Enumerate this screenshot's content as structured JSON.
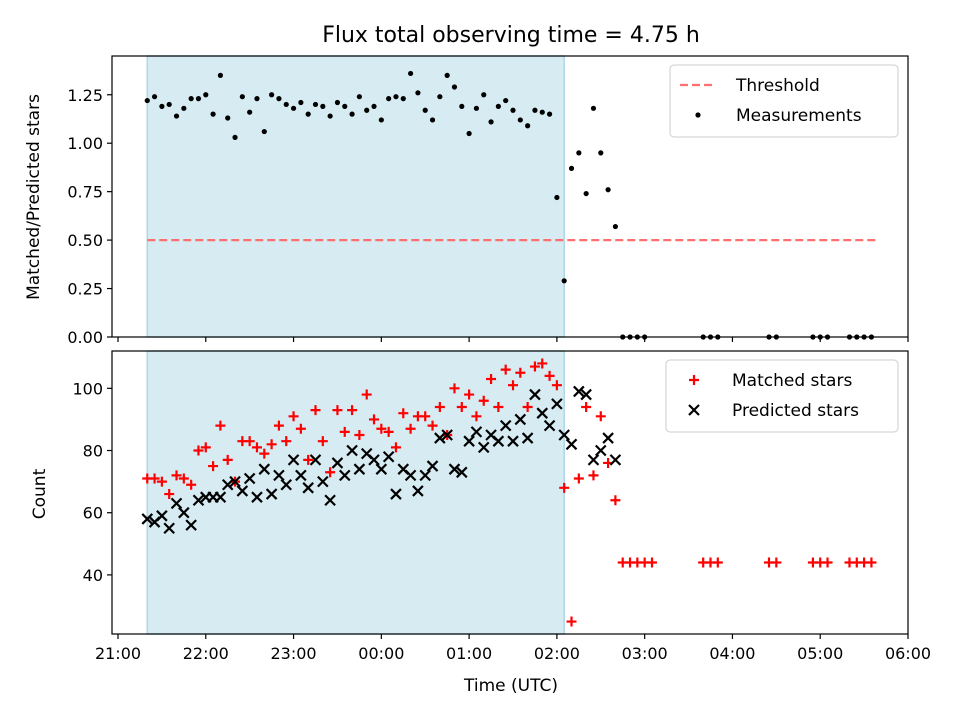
{
  "chart_data": {
    "title": "Flux total observing time = 4.75 h",
    "type": "scatter",
    "xlabel": "Time (UTC)",
    "x_ticks": [
      "21:00",
      "22:00",
      "23:00",
      "00:00",
      "01:00",
      "02:00",
      "03:00",
      "04:00",
      "05:00",
      "06:00"
    ],
    "x_range": [
      "21:00",
      "06:00"
    ],
    "shaded_interval": [
      "21:20",
      "02:05"
    ],
    "colors": {
      "shade": "#add8e6",
      "threshold": "#ff6f6f",
      "matched": "#ff0000",
      "predicted": "#000000",
      "measurement": "#000000"
    },
    "panels": [
      {
        "ylabel": "Matched/Predicted stars",
        "ylim": [
          0,
          1.45
        ],
        "yticks": [
          "0.00",
          "0.25",
          "0.50",
          "0.75",
          "1.00",
          "1.25"
        ],
        "legend_position": "top-right",
        "threshold": {
          "name": "Threshold",
          "value": 0.5,
          "x_range": [
            "21:20",
            "05:40"
          ]
        },
        "series": [
          {
            "name": "Measurements",
            "marker": "dot",
            "points": [
              [
                "21:20",
                1.22
              ],
              [
                "21:25",
                1.24
              ],
              [
                "21:30",
                1.19
              ],
              [
                "21:35",
                1.2
              ],
              [
                "21:40",
                1.14
              ],
              [
                "21:45",
                1.18
              ],
              [
                "21:50",
                1.23
              ],
              [
                "21:55",
                1.23
              ],
              [
                "22:00",
                1.25
              ],
              [
                "22:05",
                1.15
              ],
              [
                "22:10",
                1.35
              ],
              [
                "22:15",
                1.13
              ],
              [
                "22:20",
                1.03
              ],
              [
                "22:25",
                1.24
              ],
              [
                "22:30",
                1.16
              ],
              [
                "22:35",
                1.23
              ],
              [
                "22:40",
                1.06
              ],
              [
                "22:45",
                1.25
              ],
              [
                "22:50",
                1.23
              ],
              [
                "22:55",
                1.2
              ],
              [
                "23:00",
                1.18
              ],
              [
                "23:05",
                1.21
              ],
              [
                "23:10",
                1.15
              ],
              [
                "23:15",
                1.2
              ],
              [
                "23:20",
                1.19
              ],
              [
                "23:25",
                1.14
              ],
              [
                "23:30",
                1.21
              ],
              [
                "23:35",
                1.19
              ],
              [
                "23:40",
                1.15
              ],
              [
                "23:45",
                1.24
              ],
              [
                "23:50",
                1.17
              ],
              [
                "23:55",
                1.19
              ],
              [
                "00:00",
                1.12
              ],
              [
                "00:05",
                1.23
              ],
              [
                "00:10",
                1.24
              ],
              [
                "00:15",
                1.23
              ],
              [
                "00:20",
                1.36
              ],
              [
                "00:25",
                1.26
              ],
              [
                "00:30",
                1.17
              ],
              [
                "00:35",
                1.12
              ],
              [
                "00:40",
                1.24
              ],
              [
                "00:45",
                1.35
              ],
              [
                "00:50",
                1.29
              ],
              [
                "00:55",
                1.19
              ],
              [
                "01:00",
                1.05
              ],
              [
                "01:05",
                1.18
              ],
              [
                "01:10",
                1.25
              ],
              [
                "01:15",
                1.11
              ],
              [
                "01:20",
                1.19
              ],
              [
                "01:25",
                1.22
              ],
              [
                "01:30",
                1.17
              ],
              [
                "01:35",
                1.12
              ],
              [
                "01:40",
                1.09
              ],
              [
                "01:45",
                1.17
              ],
              [
                "01:50",
                1.16
              ],
              [
                "01:55",
                1.15
              ],
              [
                "02:00",
                0.72
              ],
              [
                "02:05",
                0.29
              ],
              [
                "02:10",
                0.87
              ],
              [
                "02:15",
                0.95
              ],
              [
                "02:20",
                0.74
              ],
              [
                "02:25",
                1.18
              ],
              [
                "02:30",
                0.95
              ],
              [
                "02:35",
                0.76
              ],
              [
                "02:40",
                0.57
              ],
              [
                "02:45",
                0
              ],
              [
                "02:50",
                0
              ],
              [
                "02:55",
                0
              ],
              [
                "03:00",
                0
              ],
              [
                "03:40",
                0
              ],
              [
                "03:45",
                0
              ],
              [
                "03:50",
                0
              ],
              [
                "04:25",
                0
              ],
              [
                "04:30",
                0
              ],
              [
                "04:55",
                0
              ],
              [
                "05:00",
                0
              ],
              [
                "05:05",
                0
              ],
              [
                "05:20",
                0
              ],
              [
                "05:25",
                0
              ],
              [
                "05:30",
                0
              ],
              [
                "05:35",
                0
              ]
            ]
          }
        ]
      },
      {
        "ylabel": "Count",
        "ylim": [
          21,
          112
        ],
        "yticks": [
          "40",
          "60",
          "80",
          "100"
        ],
        "legend_position": "top-right",
        "series": [
          {
            "name": "Matched stars",
            "marker": "plus",
            "points": [
              [
                "21:20",
                71
              ],
              [
                "21:25",
                71
              ],
              [
                "21:30",
                70
              ],
              [
                "21:35",
                66
              ],
              [
                "21:40",
                72
              ],
              [
                "21:45",
                71
              ],
              [
                "21:50",
                69
              ],
              [
                "21:55",
                80
              ],
              [
                "22:00",
                81
              ],
              [
                "22:05",
                75
              ],
              [
                "22:10",
                88
              ],
              [
                "22:15",
                77
              ],
              [
                "22:20",
                70
              ],
              [
                "22:25",
                83
              ],
              [
                "22:30",
                83
              ],
              [
                "22:35",
                81
              ],
              [
                "22:40",
                79
              ],
              [
                "22:45",
                82
              ],
              [
                "22:50",
                88
              ],
              [
                "22:55",
                83
              ],
              [
                "23:00",
                91
              ],
              [
                "23:05",
                87
              ],
              [
                "23:10",
                77
              ],
              [
                "23:15",
                93
              ],
              [
                "23:20",
                83
              ],
              [
                "23:25",
                73
              ],
              [
                "23:30",
                93
              ],
              [
                "23:35",
                86
              ],
              [
                "23:40",
                93
              ],
              [
                "23:45",
                85
              ],
              [
                "23:50",
                98
              ],
              [
                "23:55",
                90
              ],
              [
                "00:00",
                87
              ],
              [
                "00:05",
                86
              ],
              [
                "00:10",
                81
              ],
              [
                "00:15",
                92
              ],
              [
                "00:20",
                87
              ],
              [
                "00:25",
                91
              ],
              [
                "00:30",
                91
              ],
              [
                "00:35",
                88
              ],
              [
                "00:40",
                94
              ],
              [
                "00:45",
                85
              ],
              [
                "00:50",
                100
              ],
              [
                "00:55",
                94
              ],
              [
                "01:00",
                98
              ],
              [
                "01:05",
                91
              ],
              [
                "01:10",
                96
              ],
              [
                "01:15",
                103
              ],
              [
                "01:20",
                94
              ],
              [
                "01:25",
                106
              ],
              [
                "01:30",
                101
              ],
              [
                "01:35",
                105
              ],
              [
                "01:40",
                94
              ],
              [
                "01:45",
                107
              ],
              [
                "01:50",
                108
              ],
              [
                "01:55",
                104
              ],
              [
                "02:00",
                101
              ],
              [
                "02:05",
                68
              ],
              [
                "02:10",
                25
              ],
              [
                "02:15",
                71
              ],
              [
                "02:20",
                94
              ],
              [
                "02:25",
                72
              ],
              [
                "02:30",
                91
              ],
              [
                "02:35",
                76
              ],
              [
                "02:40",
                64
              ],
              [
                "02:45",
                44
              ],
              [
                "02:50",
                44
              ],
              [
                "02:55",
                44
              ],
              [
                "03:00",
                44
              ],
              [
                "03:05",
                44
              ],
              [
                "03:40",
                44
              ],
              [
                "03:45",
                44
              ],
              [
                "03:50",
                44
              ],
              [
                "04:25",
                44
              ],
              [
                "04:30",
                44
              ],
              [
                "04:55",
                44
              ],
              [
                "05:00",
                44
              ],
              [
                "05:05",
                44
              ],
              [
                "05:20",
                44
              ],
              [
                "05:25",
                44
              ],
              [
                "05:30",
                44
              ],
              [
                "05:35",
                44
              ]
            ]
          },
          {
            "name": "Predicted stars",
            "marker": "cross",
            "points": [
              [
                "21:20",
                58
              ],
              [
                "21:25",
                57
              ],
              [
                "21:30",
                59
              ],
              [
                "21:35",
                55
              ],
              [
                "21:40",
                63
              ],
              [
                "21:45",
                60
              ],
              [
                "21:50",
                56
              ],
              [
                "21:55",
                64
              ],
              [
                "22:00",
                65
              ],
              [
                "22:05",
                65
              ],
              [
                "22:10",
                65
              ],
              [
                "22:15",
                69
              ],
              [
                "22:20",
                70
              ],
              [
                "22:25",
                67
              ],
              [
                "22:30",
                71
              ],
              [
                "22:35",
                65
              ],
              [
                "22:40",
                74
              ],
              [
                "22:45",
                66
              ],
              [
                "22:50",
                72
              ],
              [
                "22:55",
                69
              ],
              [
                "23:00",
                77
              ],
              [
                "23:05",
                72
              ],
              [
                "23:10",
                68
              ],
              [
                "23:15",
                77
              ],
              [
                "23:20",
                70
              ],
              [
                "23:25",
                64
              ],
              [
                "23:30",
                76
              ],
              [
                "23:35",
                72
              ],
              [
                "23:40",
                80
              ],
              [
                "23:45",
                74
              ],
              [
                "23:50",
                79
              ],
              [
                "23:55",
                77
              ],
              [
                "00:00",
                74
              ],
              [
                "00:05",
                78
              ],
              [
                "00:10",
                66
              ],
              [
                "00:15",
                74
              ],
              [
                "00:20",
                72
              ],
              [
                "00:25",
                67
              ],
              [
                "00:30",
                72
              ],
              [
                "00:35",
                75
              ],
              [
                "00:40",
                84
              ],
              [
                "00:45",
                85
              ],
              [
                "00:50",
                74
              ],
              [
                "00:55",
                73
              ],
              [
                "01:00",
                83
              ],
              [
                "01:05",
                86
              ],
              [
                "01:10",
                81
              ],
              [
                "01:15",
                85
              ],
              [
                "01:20",
                83
              ],
              [
                "01:25",
                88
              ],
              [
                "01:30",
                83
              ],
              [
                "01:35",
                90
              ],
              [
                "01:40",
                84
              ],
              [
                "01:45",
                98
              ],
              [
                "01:50",
                92
              ],
              [
                "01:55",
                88
              ],
              [
                "02:00",
                95
              ],
              [
                "02:05",
                85
              ],
              [
                "02:10",
                82
              ],
              [
                "02:15",
                99
              ],
              [
                "02:20",
                98
              ],
              [
                "02:25",
                77
              ],
              [
                "02:30",
                80
              ],
              [
                "02:35",
                84
              ],
              [
                "02:40",
                77
              ]
            ]
          }
        ]
      }
    ]
  }
}
